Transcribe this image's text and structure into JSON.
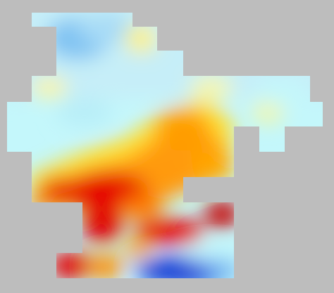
{
  "colors": {
    "background": "#bdbdbd",
    "ramp": [
      "#0a28d0",
      "#3f86f0",
      "#96d4f6",
      "#c4f7fb",
      "#ffff80",
      "#ffd21e",
      "#ff8c00",
      "#e60000",
      "#c00000"
    ]
  }
}
